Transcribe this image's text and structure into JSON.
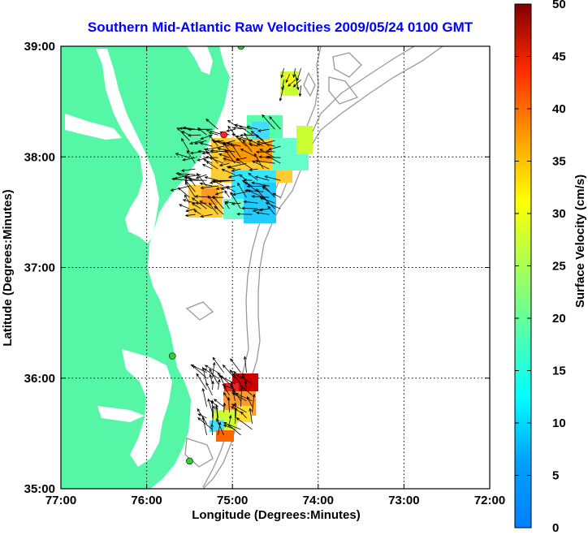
{
  "chart_data": {
    "type": "map-vector-field",
    "title": "Southern Mid-Atlantic Raw Velocities 2009/05/24 0100 GMT",
    "xlabel": "Longitude (Degrees:Minutes)",
    "ylabel": "Latitude (Degrees:Minutes)",
    "x_ticks": [
      "77:00",
      "76:00",
      "75:00",
      "74:00",
      "73:00",
      "72:00"
    ],
    "y_ticks": [
      "39:00",
      "38:00",
      "37:00",
      "36:00",
      "35:00"
    ],
    "xlim": [
      -77,
      -72
    ],
    "ylim": [
      35,
      39
    ],
    "grid": "dotted",
    "colorbar": {
      "label": "Surface Velocity (cm/s)",
      "range": [
        0,
        50
      ],
      "ticks": [
        "0",
        "5",
        "10",
        "15",
        "20",
        "25",
        "30",
        "35",
        "40",
        "45",
        "50"
      ]
    },
    "colors": {
      "land": "#55f7a6",
      "water": "#ffffff",
      "bathymetry": "#999999",
      "title": "#0000ff",
      "station": "#33cc33",
      "station_alt": "#ff2222"
    },
    "stations": [
      {
        "lon": -74.9,
        "lat": 39.0,
        "color": "#33cc33"
      },
      {
        "lon": -75.1,
        "lat": 38.2,
        "color": "#ff2222"
      },
      {
        "lon": -75.7,
        "lat": 36.2,
        "color": "#33cc33"
      },
      {
        "lon": -75.5,
        "lat": 35.25,
        "color": "#33cc33"
      }
    ],
    "velocity_patches": [
      {
        "name": "north-small",
        "lon": [
          -74.4,
          -74.2
        ],
        "lat": [
          38.6,
          38.8
        ],
        "speed": 26
      },
      {
        "name": "north-main",
        "lon": [
          -75.5,
          -74.4
        ],
        "lat": [
          37.45,
          38.25
        ],
        "speed": 14
      },
      {
        "name": "south",
        "lon": [
          -75.3,
          -74.75
        ],
        "lat": [
          35.45,
          36.05
        ],
        "speed": 30
      }
    ]
  }
}
